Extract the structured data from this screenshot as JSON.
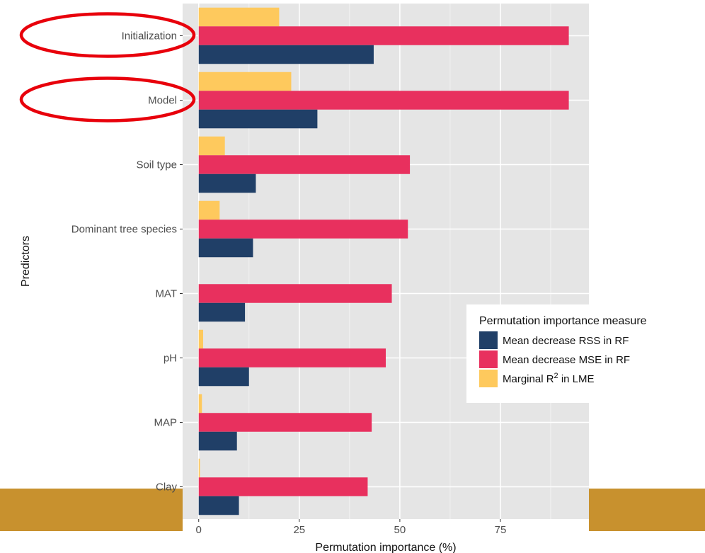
{
  "colors": {
    "panel_background": "#e5e5e5",
    "grid_major": "#ffffff",
    "grid_minor": "#f2f2f2",
    "rss_bar": "#203f67",
    "mse_bar": "#e8305e",
    "lme_bar": "#fec95d",
    "highlight_ellipse": "#e8000b",
    "footer_band": "#c8912e"
  },
  "chart_data": {
    "type": "bar",
    "orientation": "horizontal",
    "categories": [
      "Initialization",
      "Model",
      "Soil type",
      "Dominant tree species",
      "MAT",
      "pH",
      "MAP",
      "Clay"
    ],
    "series": [
      {
        "name": "Marginal R² in LME",
        "label_base": "Marginal R",
        "label_sup": "2",
        "label_tail": " in LME",
        "color": "#fec95d",
        "values": [
          20,
          23,
          6.5,
          5.2,
          0,
          1.1,
          0.8,
          0.3
        ]
      },
      {
        "name": "Mean decrease MSE in RF",
        "color": "#e8305e",
        "values": [
          92,
          92,
          52.5,
          52,
          48,
          46.5,
          43,
          42
        ]
      },
      {
        "name": "Mean decrease RSS in RF",
        "color": "#203f67",
        "values": [
          43.5,
          29.5,
          14.2,
          13.5,
          11.5,
          12.5,
          9.5,
          10
        ]
      }
    ],
    "xlabel": "Permutation importance (%)",
    "ylabel": "Predictors",
    "xlim": [
      -4,
      97
    ],
    "xticks": [
      0,
      25,
      50,
      75
    ],
    "xtick_labels": [
      "0",
      "25",
      "50",
      "75"
    ],
    "grid": true,
    "legend": {
      "title": "Permutation importance measure",
      "placement": "right",
      "order": [
        "Mean decrease RSS in RF",
        "Mean decrease MSE in RF",
        "Marginal R² in LME"
      ]
    },
    "highlighted_categories": [
      "Initialization",
      "Model"
    ]
  }
}
